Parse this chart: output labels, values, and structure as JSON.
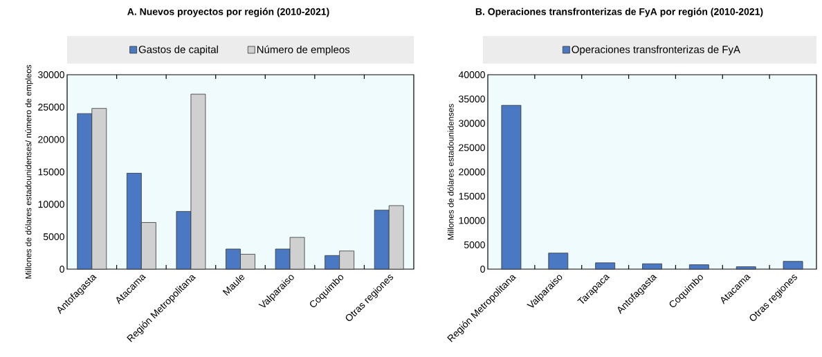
{
  "chart_data": [
    {
      "type": "bar",
      "title": "A. Nuevos proyectos por región (2010-2021)",
      "ylabel": "Millones de dólares estadounidenses/ número de empleos",
      "categories": [
        "Antofagasta",
        "Atacama",
        "Región Metropolitana",
        "Maule",
        "Valparaiso",
        "Coquimbo",
        "Otras regiones"
      ],
      "series": [
        {
          "name": "Gastos de capital",
          "color": "#4a78c2",
          "values": [
            24000,
            14800,
            8900,
            3100,
            3100,
            2100,
            9100
          ]
        },
        {
          "name": "Número de empleos",
          "color": "#d0d0d0",
          "values": [
            24800,
            7200,
            27000,
            2300,
            4900,
            2800,
            9800
          ]
        }
      ],
      "ylim": [
        0,
        30000
      ],
      "yticks": [
        0,
        5000,
        10000,
        15000,
        20000,
        25000,
        30000
      ],
      "legend": "top"
    },
    {
      "type": "bar",
      "title": "B. Operaciones transfronterizas de FyA por región (2010-2021)",
      "ylabel": "Millones de dólares estadounidenses",
      "categories": [
        "Región Metropolitana",
        "Valparaiso",
        "Tarapaca",
        "Antofagasta",
        "Coquimbo",
        "Atacama",
        "Otras regiones"
      ],
      "series": [
        {
          "name": "Operaciones transfronterizas de FyA",
          "color": "#4a78c2",
          "values": [
            33700,
            3300,
            1300,
            1100,
            900,
            500,
            1600
          ]
        }
      ],
      "ylim": [
        0,
        40000
      ],
      "yticks": [
        0,
        5000,
        10000,
        15000,
        20000,
        25000,
        30000,
        35000,
        40000
      ],
      "legend": "top"
    }
  ]
}
